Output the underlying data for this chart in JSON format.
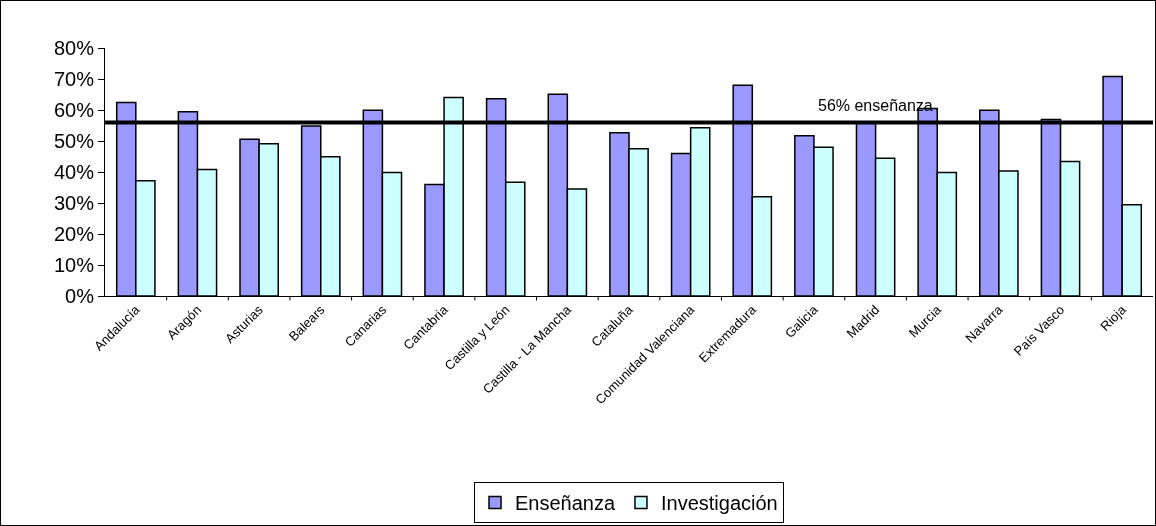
{
  "chart_data": {
    "type": "bar",
    "categories": [
      "Andalucía",
      "Aragón",
      "Asturias",
      "Balears",
      "Canarias",
      "Cantabria",
      "Castilla y León",
      "Castilla - La Mancha",
      "Cataluña",
      "Comunidad Valenciana",
      "Extremadura",
      "Galicia",
      "Madrid",
      "Murcia",
      "Navarra",
      "País Vasco",
      "Rioja"
    ],
    "series": [
      {
        "name": "Enseñanza",
        "color": "#9999ff",
        "values": [
          62.4,
          59.4,
          50.6,
          54.8,
          59.9,
          36.0,
          63.6,
          65.1,
          52.7,
          46.0,
          68.0,
          51.7,
          56,
          60.5,
          59.9,
          56.9,
          70.8
        ]
      },
      {
        "name": "Investigación",
        "color": "#ccffff",
        "values": [
          37.2,
          40.8,
          49.1,
          44.9,
          39.8,
          64.0,
          36.7,
          34.5,
          47.5,
          54.3,
          32.0,
          48.0,
          44.4,
          39.8,
          40.3,
          43.4,
          29.4
        ]
      }
    ],
    "ylim": [
      0,
      80
    ],
    "yticks": [
      {
        "value": 0,
        "label": "0%"
      },
      {
        "value": 10,
        "label": "10%"
      },
      {
        "value": 20,
        "label": "20%"
      },
      {
        "value": 30,
        "label": "30%"
      },
      {
        "value": 40,
        "label": "40%"
      },
      {
        "value": 50,
        "label": "50%"
      },
      {
        "value": 60,
        "label": "60%"
      },
      {
        "value": 70,
        "label": "70%"
      },
      {
        "value": 80,
        "label": "80%"
      }
    ],
    "ref_lines": [
      {
        "axis": "y",
        "value": 56,
        "label": "56% enseñanza",
        "color": "#000000"
      }
    ],
    "grid": false,
    "legend": "bottom"
  }
}
